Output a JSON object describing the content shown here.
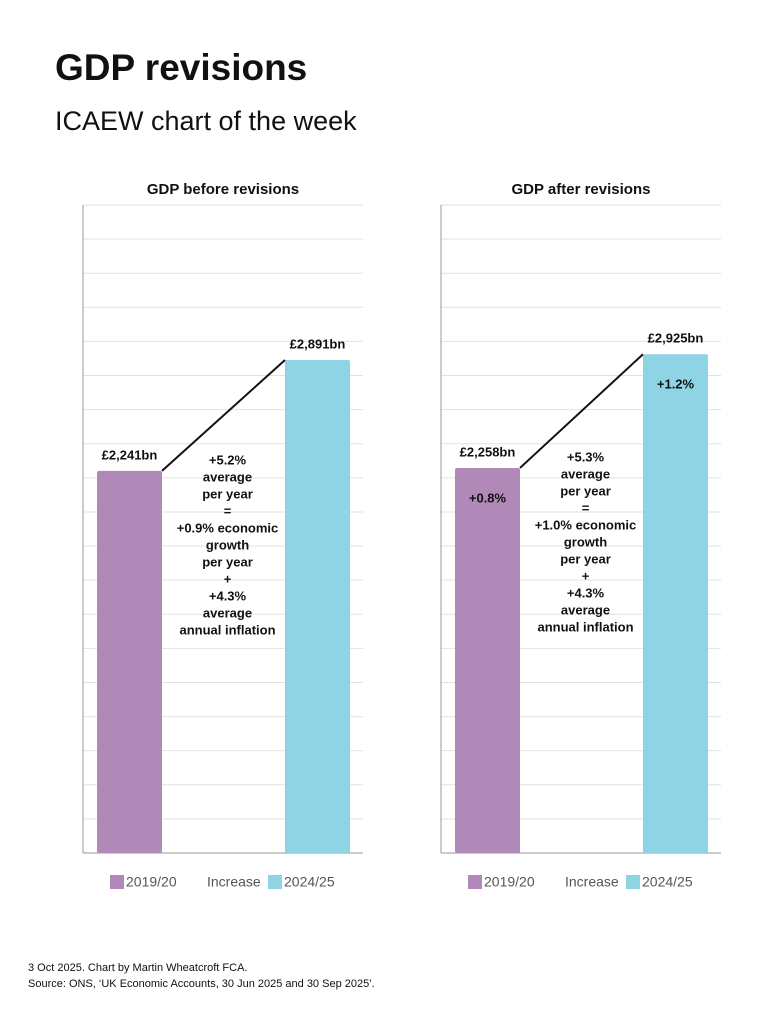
{
  "title": "GDP revisions",
  "subtitle": "ICAEW chart of the week",
  "footer": [
    "3 Oct 2025. Chart by Martin Wheatcroft FCA.",
    "Source: ONS, ‘UK Economic Accounts, 30 Jun 2025 and 30 Sep 2025’."
  ],
  "chart_data": [
    {
      "type": "bar",
      "title": "GDP before revisions",
      "values": [
        2241,
        2891
      ],
      "value_labels": [
        "£2,241bn",
        "£2,891bn"
      ],
      "colors": [
        "#b189b9",
        "#8fd4e5"
      ],
      "ylim": [
        0,
        3800
      ],
      "yticks": [
        0,
        200,
        400,
        600,
        800,
        1000,
        1200,
        1400,
        1600,
        1800,
        2000,
        2200,
        2400,
        2600,
        2800,
        3000,
        3200,
        3400,
        3600,
        3800
      ],
      "grid": true,
      "annotation": [
        "+5.2%",
        "average",
        "per year",
        "=",
        "+0.9% economic",
        "growth",
        "per year",
        "+",
        "+4.3%",
        "average",
        "annual inflation"
      ],
      "legend": [
        {
          "name": "2019/20",
          "color": "#b189b9"
        },
        {
          "name": "Increase",
          "color": "#ffffff"
        },
        {
          "name": "2024/25",
          "color": "#8fd4e5"
        }
      ]
    },
    {
      "type": "bar",
      "title": "GDP after revisions",
      "values": [
        2258,
        2925
      ],
      "value_labels": [
        "£2,258bn",
        "£2,925bn"
      ],
      "inner_labels": [
        "+0.8%",
        "+1.2%"
      ],
      "colors": [
        "#b189b9",
        "#8fd4e5"
      ],
      "ylim": [
        0,
        3800
      ],
      "yticks": [
        0,
        200,
        400,
        600,
        800,
        1000,
        1200,
        1400,
        1600,
        1800,
        2000,
        2200,
        2400,
        2600,
        2800,
        3000,
        3200,
        3400,
        3600,
        3800
      ],
      "grid": true,
      "annotation": [
        "+5.3%",
        "average",
        "per year",
        "=",
        "+1.0% economic",
        "growth",
        "per year",
        "+",
        "+4.3%",
        "average",
        "annual inflation"
      ],
      "legend": [
        {
          "name": "2019/20",
          "color": "#b189b9"
        },
        {
          "name": "Increase",
          "color": "#ffffff"
        },
        {
          "name": "2024/25",
          "color": "#8fd4e5"
        }
      ]
    }
  ]
}
